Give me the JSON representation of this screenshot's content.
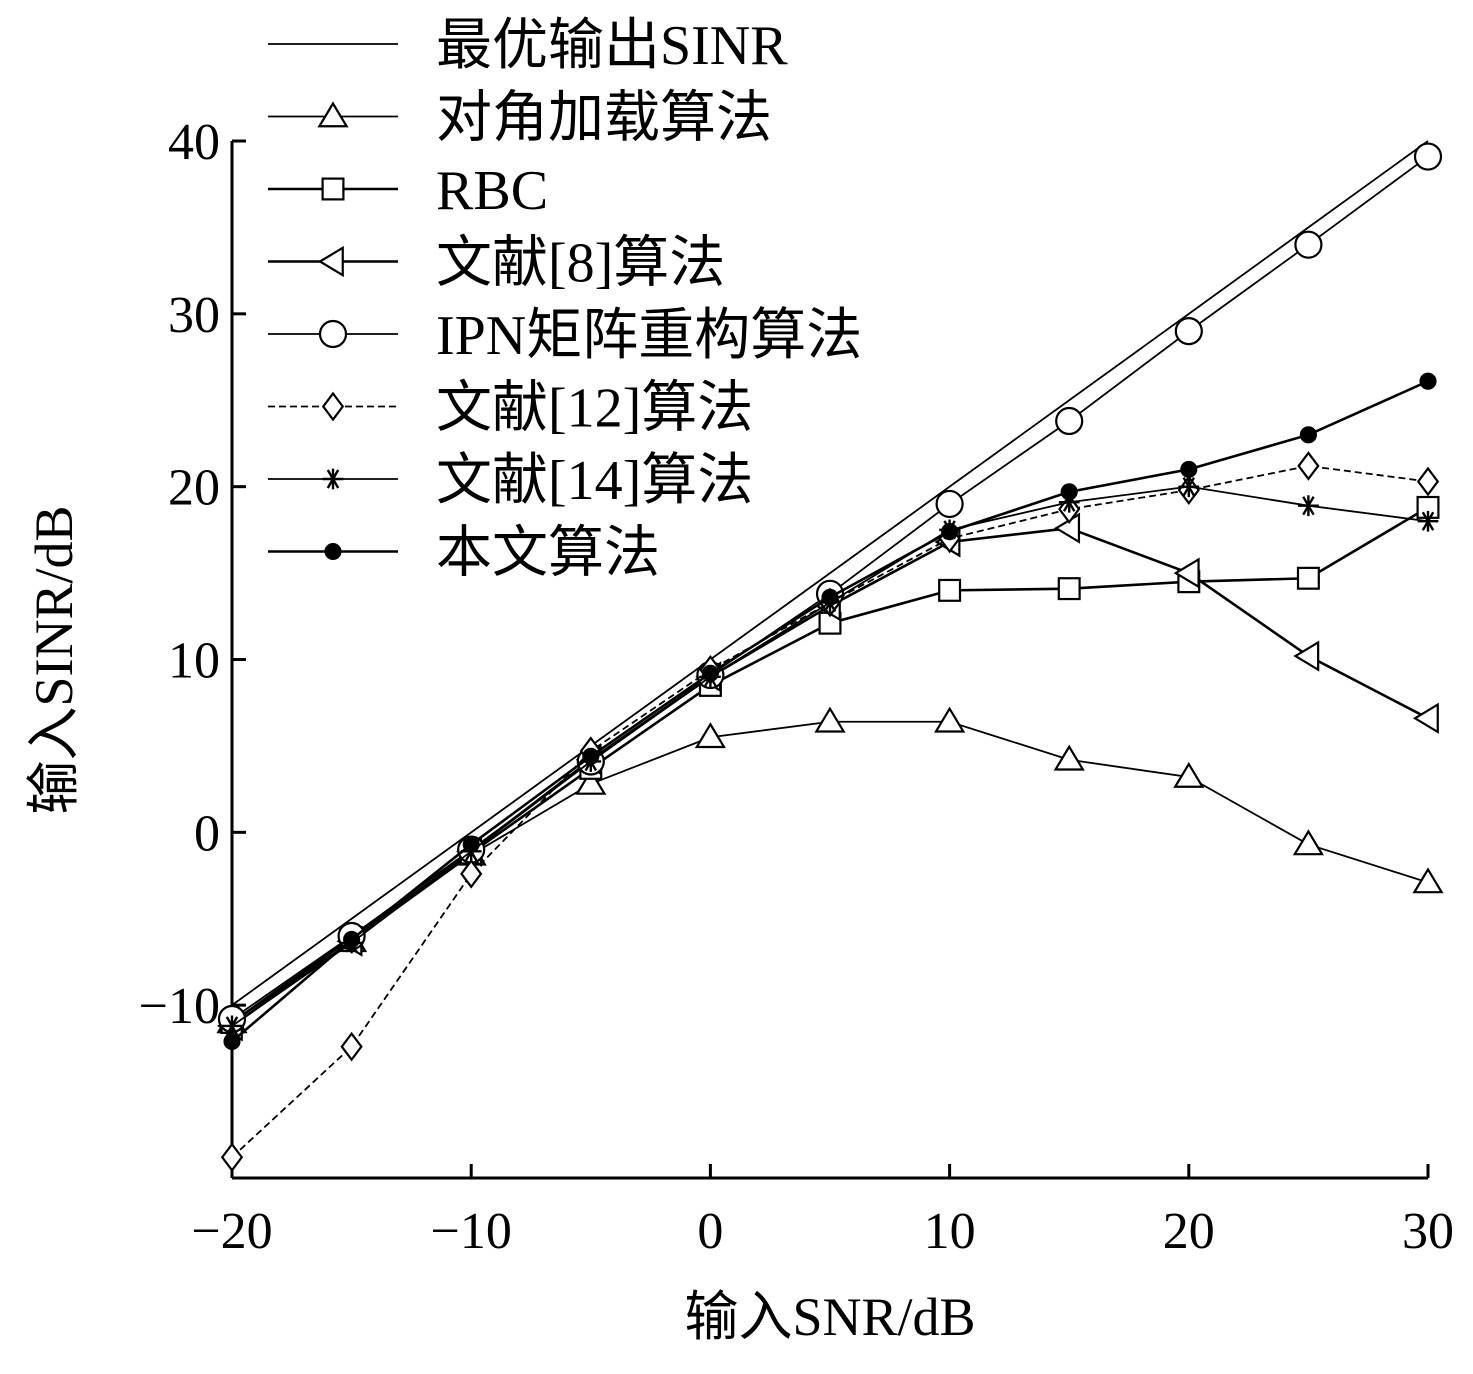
{
  "chart_data": {
    "type": "line",
    "title": "",
    "xlabel": "输入SNR/dB",
    "ylabel": "输入SINR/dB",
    "xlim": [
      -20,
      30
    ],
    "ylim": [
      -20,
      40
    ],
    "x_ticks": [
      -20,
      -10,
      0,
      10,
      20,
      30
    ],
    "y_ticks": [
      -10,
      0,
      10,
      20,
      30,
      40
    ],
    "x_tick_labels": [
      "−20",
      "−10",
      "0",
      "10",
      "20",
      "30"
    ],
    "y_tick_labels": [
      "−10",
      "0",
      "10",
      "20",
      "30",
      "40"
    ],
    "grid": false,
    "legend_position": "top-left",
    "x": [
      -20,
      -15,
      -10,
      -5,
      0,
      5,
      10,
      15,
      20,
      25,
      30
    ],
    "series": [
      {
        "name": "最优输出SINR",
        "marker": "none",
        "dash": "solid",
        "values": [
          -10,
          -5,
          0,
          5,
          10,
          15,
          20,
          25,
          30,
          35,
          40
        ]
      },
      {
        "name": "对角加载算法",
        "marker": "triangle-up",
        "dash": "solid",
        "values": [
          -11,
          -6.3,
          -1.3,
          2.8,
          5.5,
          6.4,
          6.4,
          4.2,
          3.2,
          -0.7,
          -2.9
        ]
      },
      {
        "name": "RBC",
        "marker": "square",
        "dash": "solid",
        "values": [
          -11,
          -6.1,
          -1.2,
          3.7,
          8.5,
          12.1,
          14,
          14.1,
          14.5,
          14.7,
          18.8
        ]
      },
      {
        "name": "文献[8]算法",
        "marker": "triangle-left",
        "dash": "solid",
        "values": [
          -11.2,
          -6.3,
          -1.1,
          4.2,
          9,
          13.1,
          16.8,
          17.6,
          15,
          10.2,
          6.6
        ]
      },
      {
        "name": "IPN矩阵重构算法",
        "marker": "circle",
        "dash": "solid",
        "values": [
          -10.8,
          -6,
          -1,
          4.1,
          9.1,
          13.8,
          19,
          23.8,
          29,
          34,
          39.1
        ]
      },
      {
        "name": "文献[12]算法",
        "marker": "diamond",
        "dash": "dashed",
        "values": [
          -18.8,
          -12.4,
          -2.4,
          4.7,
          9.4,
          13.3,
          17,
          18.7,
          19.8,
          21.2,
          20.3
        ]
      },
      {
        "name": "文献[14]算法",
        "marker": "star",
        "dash": "solid",
        "values": [
          -11.2,
          -6.4,
          -1.1,
          4.1,
          9,
          13.3,
          17.5,
          19.1,
          20,
          18.9,
          18
        ]
      },
      {
        "name": "本文算法",
        "marker": "filled-circle",
        "dash": "solid",
        "values": [
          -12.1,
          -6.2,
          -0.7,
          4.4,
          9.2,
          13.6,
          17.4,
          19.7,
          21,
          23,
          26.1
        ]
      }
    ]
  }
}
